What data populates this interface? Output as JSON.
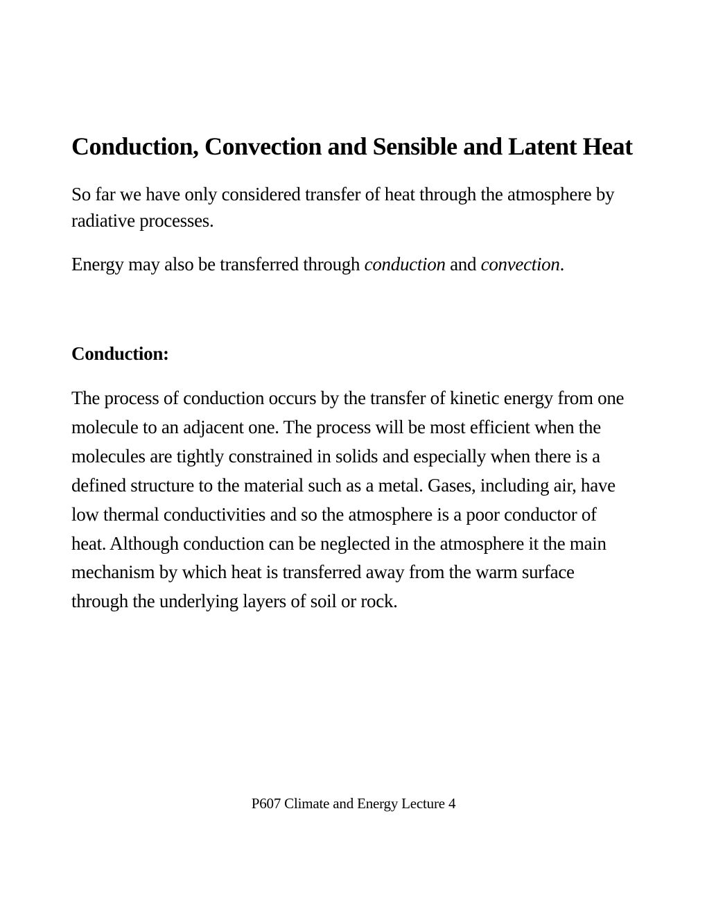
{
  "title": "Conduction, Convection and Sensible and Latent Heat",
  "intro": {
    "para1": "So far we have only considered transfer of heat through the atmosphere by radiative processes.",
    "para2_prefix": "Energy may also be transferred through ",
    "para2_italic1": "conduction",
    "para2_mid": " and ",
    "para2_italic2": "convection",
    "para2_suffix": "."
  },
  "section": {
    "heading": "Conduction:",
    "body": "The process of conduction occurs by the transfer of kinetic energy from one molecule to an adjacent one.  The process will be most efficient when the molecules are tightly constrained in solids and especially when there is a defined structure to the material such as a metal.  Gases, including air, have low thermal conductivities and so the atmosphere is a poor conductor of heat.  Although conduction can be neglected in the atmosphere it the main mechanism by which heat is transferred away from the warm surface through the underlying layers of soil or rock."
  },
  "footer": "P607 Climate and Energy Lecture 4",
  "colors": {
    "background": "#ffffff",
    "text": "#000000"
  },
  "typography": {
    "title_fontsize": 36,
    "body_fontsize": 27,
    "footer_fontsize": 21,
    "font_family": "Times New Roman"
  }
}
